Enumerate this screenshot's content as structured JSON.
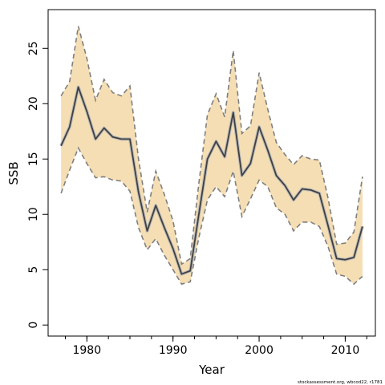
{
  "chart_data": {
    "type": "line",
    "title": "",
    "xlabel": "Year",
    "ylabel": "SSB",
    "xlim": [
      1975.5,
      2013.5
    ],
    "ylim": [
      -1.0,
      28.5
    ],
    "x_ticks": [
      1980,
      1990,
      2000,
      2010
    ],
    "y_ticks": [
      0,
      5,
      10,
      15,
      20,
      25
    ],
    "x_tick_labels": [
      "1980",
      "1990",
      "2000",
      "2010"
    ],
    "y_tick_labels": [
      "0",
      "5",
      "10",
      "15",
      "20",
      "25"
    ],
    "grid": false,
    "colors": {
      "band_fill": "#f5deb3",
      "bound_line": "#7f7f7f",
      "estimate_line": "#404040",
      "estimate_halo": "#bbbbbb",
      "frame": "#000000"
    },
    "x": [
      1977,
      1978,
      1979,
      1980,
      1981,
      1982,
      1983,
      1984,
      1985,
      1986,
      1987,
      1988,
      1989,
      1990,
      1991,
      1992,
      1993,
      1994,
      1995,
      1996,
      1997,
      1998,
      1999,
      2000,
      2001,
      2002,
      2003,
      2004,
      2005,
      2006,
      2007,
      2008,
      2009,
      2010,
      2011,
      2012
    ],
    "series": [
      {
        "role": "estimate",
        "values": [
          16.2,
          17.9,
          21.5,
          19.3,
          16.8,
          17.8,
          17.0,
          16.8,
          16.8,
          12.0,
          8.5,
          10.8,
          8.8,
          6.9,
          4.6,
          4.9,
          10.0,
          15.0,
          16.6,
          15.2,
          19.2,
          13.5,
          14.6,
          17.9,
          15.8,
          13.5,
          12.6,
          11.3,
          12.3,
          12.2,
          11.9,
          9.0,
          6.0,
          5.9,
          6.1,
          8.9
        ]
      },
      {
        "role": "upper",
        "values": [
          20.7,
          22.0,
          27.0,
          24.1,
          20.3,
          22.2,
          21.0,
          20.7,
          21.6,
          15.0,
          10.2,
          13.9,
          11.8,
          9.4,
          5.5,
          6.0,
          12.8,
          19.0,
          20.9,
          18.8,
          24.8,
          17.3,
          18.0,
          22.8,
          19.5,
          16.5,
          15.4,
          14.5,
          15.3,
          15.0,
          14.9,
          11.5,
          7.3,
          7.4,
          8.4,
          13.4
        ]
      },
      {
        "role": "lower",
        "values": [
          11.9,
          14.0,
          16.0,
          14.6,
          13.3,
          13.4,
          13.1,
          13.0,
          12.1,
          8.8,
          6.8,
          7.8,
          6.3,
          5.0,
          3.7,
          3.9,
          7.9,
          11.3,
          12.5,
          11.6,
          13.9,
          9.8,
          11.4,
          13.1,
          12.5,
          10.6,
          10.0,
          8.5,
          9.3,
          9.3,
          8.9,
          7.1,
          4.6,
          4.4,
          3.7,
          4.4
        ]
      }
    ]
  },
  "footnote": "stockassessment.org, wbcod22, r1781"
}
